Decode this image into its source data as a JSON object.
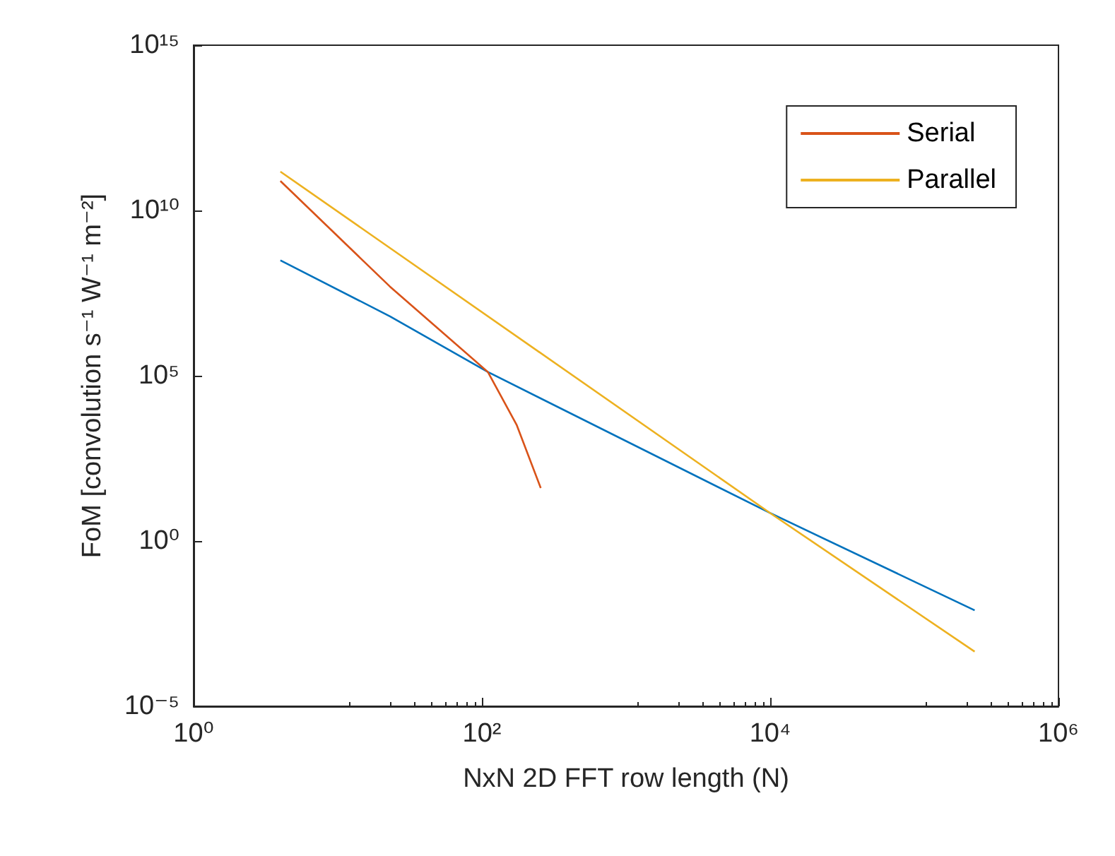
{
  "chart_data": {
    "type": "line",
    "xlabel": "NxN 2D FFT row length (N)",
    "ylabel": "FoM [convolution s⁻¹ W⁻¹ m⁻²]",
    "log": "xy",
    "grid": false,
    "legend": "top right",
    "marker": "none",
    "line_style": "solid",
    "xlim": [
      1,
      1000000
    ],
    "xticks": [
      {
        "value": 1,
        "label": "10⁰"
      },
      {
        "value": 100,
        "label": "10²"
      },
      {
        "value": 10000,
        "label": "10⁴"
      },
      {
        "value": 1000000,
        "label": "10⁶"
      }
    ],
    "ylim": [
      1e-05,
      1000000000000000
    ],
    "yticks": [
      {
        "value": 1e-05,
        "label": "10⁻⁵"
      },
      {
        "value": 1,
        "label": "10⁰"
      },
      {
        "value": 100000,
        "label": "10⁵"
      },
      {
        "value": 10000000000,
        "label": "10¹⁰"
      },
      {
        "value": 1000000000000000,
        "label": "10¹⁵"
      }
    ],
    "series": [
      {
        "color": "#0072bd",
        "x": [
          4,
          23,
          110,
          10000,
          262144
        ],
        "values": [
          310000000,
          6300000,
          130000,
          7,
          0.008
        ]
      },
      {
        "name": "Serial",
        "color": "#d95319",
        "x": [
          4,
          23,
          50,
          110,
          174,
          256
        ],
        "values": [
          78000000000,
          50000000,
          2600000,
          130000,
          3300,
          40
        ]
      },
      {
        "name": "Parallel",
        "color": "#edb120",
        "x": [
          4,
          10000,
          262144
        ],
        "values": [
          150000000000,
          7,
          0.00045
        ]
      }
    ]
  }
}
